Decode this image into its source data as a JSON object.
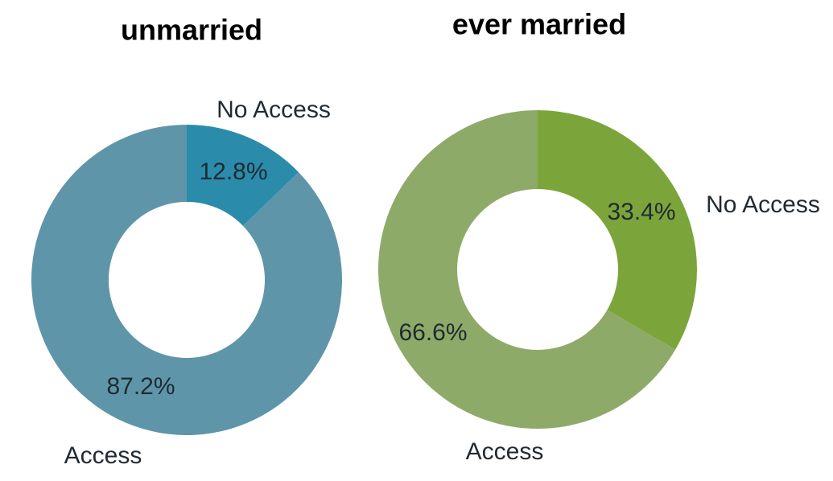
{
  "chart_data": [
    {
      "type": "donut",
      "title": "unmarried",
      "categories": [
        "No Access",
        "Access"
      ],
      "values": [
        12.8,
        87.2
      ],
      "value_labels": [
        "12.8%",
        "87.2%"
      ],
      "colors": [
        "#2b8bab",
        "#5f95a9"
      ]
    },
    {
      "type": "donut",
      "title": "ever married",
      "categories": [
        "No Access",
        "Access"
      ],
      "values": [
        33.4,
        66.6
      ],
      "value_labels": [
        "33.4%",
        "66.6%"
      ],
      "colors": [
        "#7ba53a",
        "#8eaa68"
      ]
    }
  ]
}
